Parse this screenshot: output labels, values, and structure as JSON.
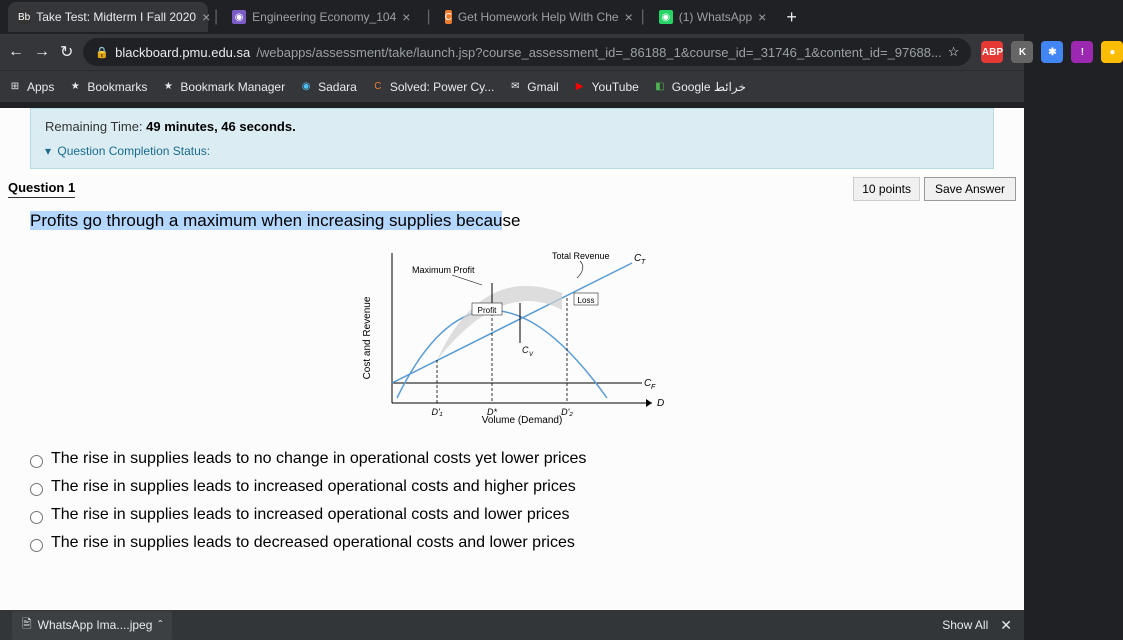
{
  "tabs": [
    {
      "title": "Take Test: Midterm I Fall 2020",
      "icon": "Bb",
      "icon_bg": "#333",
      "active": true
    },
    {
      "title": "Engineering Economy_104",
      "icon": "◉",
      "icon_bg": "#7b5cc4",
      "active": false
    },
    {
      "title": "Get Homework Help With Che",
      "icon": "C",
      "icon_bg": "#ec7c30",
      "active": false
    },
    {
      "title": "(1) WhatsApp",
      "icon": "◉",
      "icon_bg": "#25d366",
      "active": false
    }
  ],
  "url": {
    "domain": "blackboard.pmu.edu.sa",
    "path": "/webapps/assessment/take/launch.jsp?course_assessment_id=_86188_1&course_id=_31746_1&content_id=_97688..."
  },
  "ext": [
    {
      "label": "ABP",
      "bg": "#e53935"
    },
    {
      "label": "K",
      "bg": "#666"
    },
    {
      "label": "✱",
      "bg": "#4285f4"
    },
    {
      "label": "!",
      "bg": "#9c27b0"
    },
    {
      "label": "●",
      "bg": "#fbbc04"
    }
  ],
  "bookmarks": [
    {
      "label": "Apps",
      "icon": "⊞",
      "color": "#e8eaed"
    },
    {
      "label": "Bookmarks",
      "icon": "★",
      "color": "#e8eaed"
    },
    {
      "label": "Bookmark Manager",
      "icon": "★",
      "color": "#e8eaed"
    },
    {
      "label": "Sadara",
      "icon": "◉",
      "color": "#4fc3f7"
    },
    {
      "label": "Solved: Power Cy...",
      "icon": "C",
      "color": "#ec7c30"
    },
    {
      "label": "Gmail",
      "icon": "✉",
      "color": "#e8eaed"
    },
    {
      "label": "YouTube",
      "icon": "▶",
      "color": "#ff0000"
    },
    {
      "label": "Google خرائط",
      "icon": "◧",
      "color": "#4caf50"
    }
  ],
  "timer": {
    "label": "Remaining Time: ",
    "value": "49 minutes, 46 seconds."
  },
  "status_label": "Question Completion Status:",
  "question": {
    "number": "Question 1",
    "points": "10 points",
    "save": "Save Answer",
    "text_hl": "Profits go through a maximum when increasing supplies becau",
    "text_rest": "se"
  },
  "chart": {
    "ylabel": "Cost and Revenue",
    "xlabel": "Volume (Demand)",
    "labels": {
      "max_profit": "Maximum Profit",
      "total_rev": "Total Revenue",
      "profit": "Profit",
      "loss": "Loss",
      "ct": "C_T",
      "cf": "C_F",
      "d1": "D'₁",
      "dstar": "D*",
      "d2": "D'₂",
      "d": "D",
      "cv": "C_V"
    },
    "colors": {
      "curve": "#5a9bd4",
      "line": "#000",
      "fill": "#d0d0d0",
      "axis": "#000"
    }
  },
  "options": [
    "The rise in supplies leads to no change in operational costs yet lower prices",
    "The rise in supplies leads to increased operational costs and higher prices",
    "The rise in supplies leads to increased operational costs and lower prices",
    "The rise in supplies leads to decreased operational costs and lower prices"
  ],
  "download": {
    "file": "WhatsApp Ima....jpeg",
    "showall": "Show All"
  }
}
